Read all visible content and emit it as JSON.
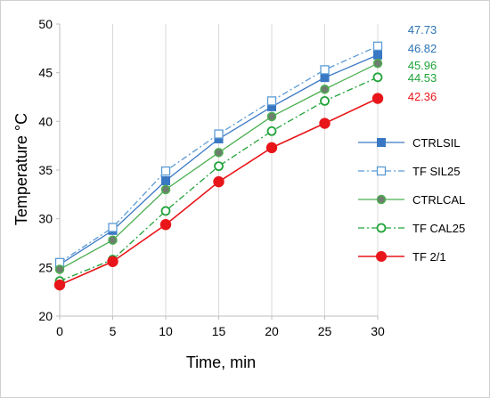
{
  "chart_data": {
    "type": "line",
    "xlabel": "Time, min",
    "ylabel": "Temperature °C",
    "x": [
      0,
      5,
      10,
      15,
      20,
      25,
      30
    ],
    "xlim": [
      0,
      30
    ],
    "ylim": [
      20,
      50
    ],
    "xticks": [
      "0",
      "5",
      "10",
      "15",
      "20",
      "25",
      "30"
    ],
    "yticks": [
      "20",
      "25",
      "30",
      "35",
      "40",
      "45",
      "50"
    ],
    "grid": "vertical",
    "legend_position": "right",
    "series": [
      {
        "name": "CTRLSIL",
        "values": [
          25.3,
          28.8,
          33.9,
          38.2,
          41.5,
          44.5,
          46.82
        ],
        "color": "#3a78c3",
        "marker": "filled-square",
        "line": "solid",
        "end_label": "46.82"
      },
      {
        "name": "TF SIL25",
        "values": [
          25.5,
          29.1,
          34.9,
          38.7,
          42.1,
          45.3,
          47.73
        ],
        "color": "#5b9bd5",
        "marker": "open-square",
        "line": "dash-dot",
        "end_label": "47.73"
      },
      {
        "name": "CTRLCAL",
        "values": [
          24.8,
          27.8,
          33.0,
          36.8,
          40.5,
          43.3,
          45.96
        ],
        "color": "#4caf50",
        "marker": "filled-circle",
        "line": "solid",
        "end_label": "45.96"
      },
      {
        "name": "TF CAL25",
        "values": [
          23.6,
          25.8,
          30.8,
          35.4,
          39.0,
          42.1,
          44.53
        ],
        "color": "#22a33a",
        "marker": "open-circle",
        "line": "dash-dot",
        "end_label": "44.53"
      },
      {
        "name": "TF 2/1",
        "values": [
          23.2,
          25.6,
          29.4,
          33.8,
          37.3,
          39.8,
          42.36
        ],
        "color": "#e8161a",
        "marker": "filled-circle",
        "line": "solid",
        "end_label": "42.36"
      }
    ],
    "end_label_colors": [
      "#2e74b5",
      "#2e74b5",
      "#1fa33a",
      "#1fa33a",
      "#e8161a"
    ]
  }
}
